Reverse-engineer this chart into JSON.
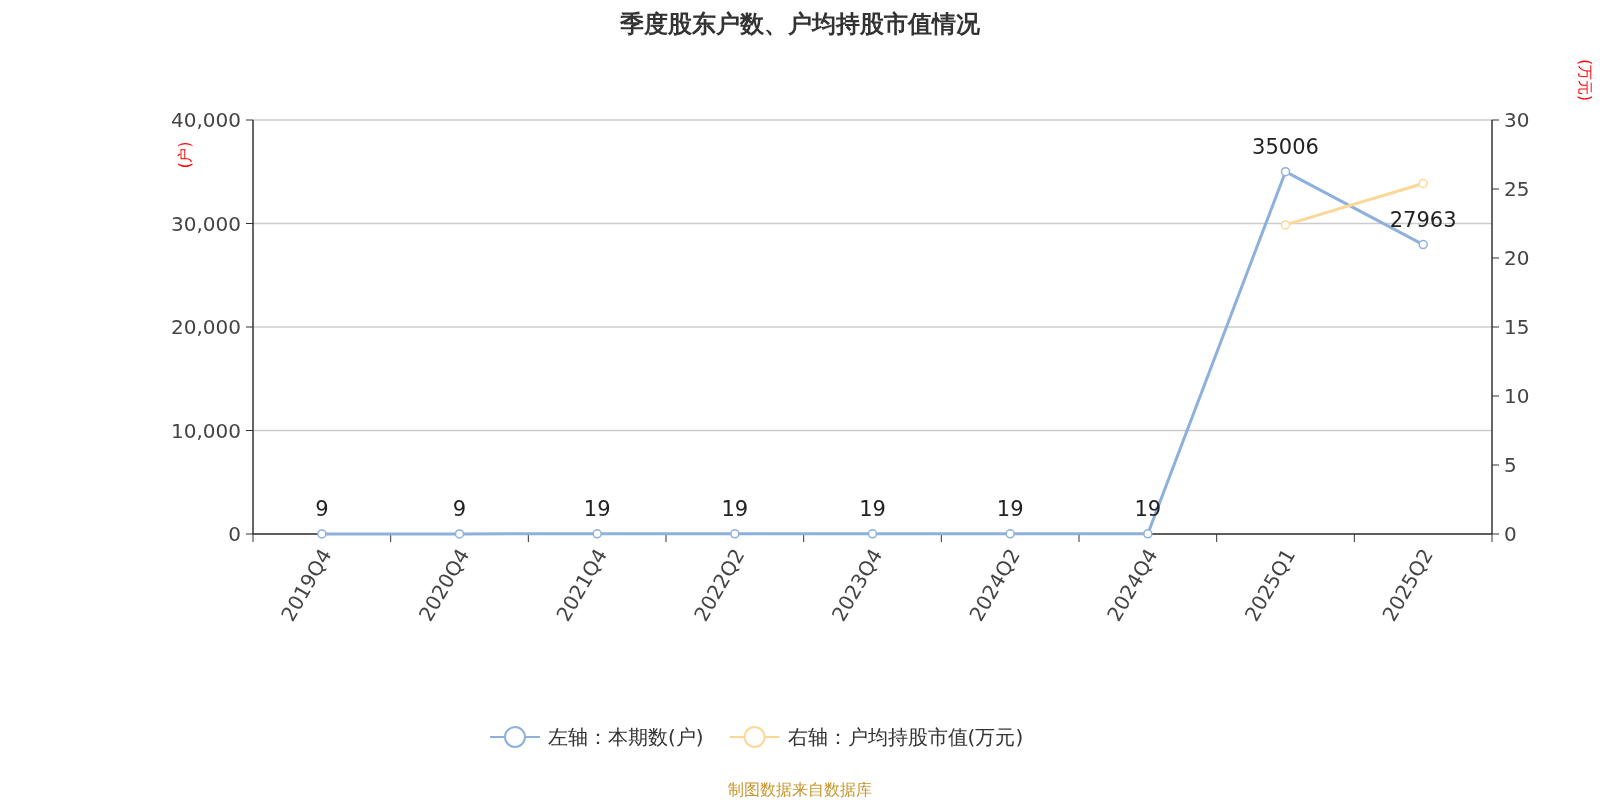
{
  "chart_data": {
    "type": "line",
    "title": "季度股东户数、户均持股市值情况",
    "ylabel": "(户)",
    "y2label": "(万元)",
    "categories": [
      "2019Q4",
      "2020Q4",
      "2021Q4",
      "2022Q2",
      "2023Q4",
      "2024Q2",
      "2024Q4",
      "2025Q1",
      "2025Q2"
    ],
    "series": [
      {
        "name": "左轴：本期数(户)",
        "color": "#8eb0dc",
        "values": [
          9,
          9,
          19,
          19,
          19,
          19,
          19,
          35006,
          27963
        ],
        "value_labels": [
          "9",
          "9",
          "19",
          "19",
          "19",
          "19",
          "19",
          "35006",
          "27963"
        ]
      },
      {
        "name": "右轴：户均持股市值(万元)",
        "color": "#fcd896",
        "axis": "y2",
        "values": [
          null,
          null,
          null,
          null,
          null,
          null,
          null,
          22.4,
          25.4
        ]
      }
    ],
    "ylim": [
      0,
      40000
    ],
    "yticks": [
      0,
      {
        "value": 10000,
        "label": "10,000"
      },
      {
        "value": 20000,
        "label": "20,000"
      },
      {
        "value": 30000,
        "label": "30,000"
      },
      {
        "value": 40000,
        "label": "40,000"
      }
    ],
    "y2lim": [
      0,
      30
    ],
    "y2ticks": [
      0,
      5,
      10,
      15,
      20,
      25,
      30
    ],
    "grid": "y",
    "legend": "bottom",
    "marker": "circle",
    "line_style": "solid",
    "annotations": [
      "制图数据来自数据库"
    ]
  }
}
